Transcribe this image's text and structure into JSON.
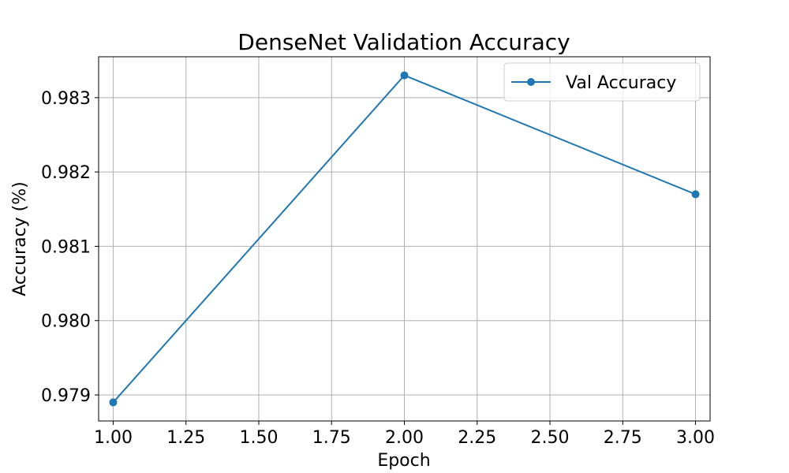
{
  "chart_data": {
    "type": "line",
    "title": "DenseNet Validation Accuracy",
    "xlabel": "Epoch",
    "ylabel": "Accuracy (%)",
    "xlim": [
      0.95,
      3.05
    ],
    "ylim": [
      0.97865,
      0.98355
    ],
    "xticks": [
      1.0,
      1.25,
      1.5,
      1.75,
      2.0,
      2.25,
      2.5,
      2.75,
      3.0
    ],
    "xtick_labels": [
      "1.00",
      "1.25",
      "1.50",
      "1.75",
      "2.00",
      "2.25",
      "2.50",
      "2.75",
      "3.00"
    ],
    "yticks": [
      0.979,
      0.98,
      0.981,
      0.982,
      0.983
    ],
    "ytick_labels": [
      "0.979",
      "0.980",
      "0.981",
      "0.982",
      "0.983"
    ],
    "grid": true,
    "legend_position": "top-right",
    "series": [
      {
        "name": "Val Accuracy",
        "color": "#1f77b4",
        "marker": "circle",
        "x": [
          1,
          2,
          3
        ],
        "y": [
          0.9789,
          0.9833,
          0.9817
        ]
      }
    ]
  }
}
